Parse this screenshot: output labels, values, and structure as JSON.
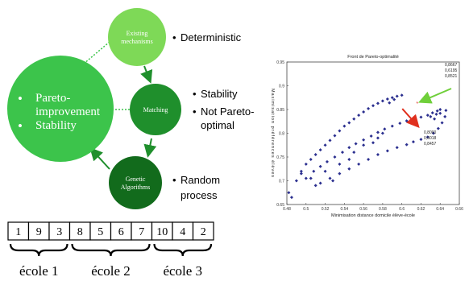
{
  "diagram": {
    "nodes": {
      "existing": {
        "label_lines": [
          "Existing",
          "mechanisms"
        ],
        "color": "#7ed957"
      },
      "matching": {
        "label": "Matching",
        "color": "#1f8f2c"
      },
      "genetic": {
        "label_lines": [
          "Genetic",
          "Algorithms"
        ],
        "color": "#126b1c"
      },
      "pareto": {
        "items": [
          "Pareto-",
          "improvement",
          "Stability"
        ],
        "color": "#3cc44b"
      }
    },
    "annotations": {
      "existing": [
        "Deterministic"
      ],
      "matching": [
        "Stability",
        "Not Pareto-",
        "optimal"
      ],
      "genetic": [
        "Random",
        "process"
      ]
    },
    "bullet": "•"
  },
  "array": {
    "cells": [
      "1",
      "9",
      "3",
      "8",
      "5",
      "6",
      "7",
      "10",
      "4",
      "2"
    ],
    "groups": [
      {
        "label": "école 1",
        "span": [
          0,
          3
        ]
      },
      {
        "label": "école 2",
        "span": [
          3,
          7
        ]
      },
      {
        "label": "école 3",
        "span": [
          7,
          10
        ]
      }
    ]
  },
  "chart_data": {
    "type": "scatter",
    "title": "Front de Pareto-optimalité",
    "xlabel": "Minimisation distance domicile élève-école",
    "ylabel": "Maximisation préférences élèves",
    "xlim": [
      0.48,
      0.66
    ],
    "ylim": [
      0.65,
      0.95
    ],
    "xticks": [
      "0.48",
      "0.5",
      "0.52",
      "0.54",
      "0.56",
      "0.58",
      "0.6",
      "0.62",
      "0.64",
      "0.66"
    ],
    "yticks": [
      "0.65",
      "0.7",
      "0.75",
      "0.8",
      "0.85",
      "0.9",
      "0.95"
    ],
    "series": [
      {
        "color": "#2b2f8f",
        "points": [
          [
            0.482,
            0.675
          ],
          [
            0.49,
            0.7
          ],
          [
            0.495,
            0.715
          ],
          [
            0.5,
            0.735
          ],
          [
            0.505,
            0.745
          ],
          [
            0.51,
            0.755
          ],
          [
            0.515,
            0.765
          ],
          [
            0.52,
            0.775
          ],
          [
            0.525,
            0.785
          ],
          [
            0.53,
            0.795
          ],
          [
            0.535,
            0.805
          ],
          [
            0.54,
            0.815
          ],
          [
            0.545,
            0.822
          ],
          [
            0.55,
            0.83
          ],
          [
            0.555,
            0.838
          ],
          [
            0.56,
            0.845
          ],
          [
            0.565,
            0.852
          ],
          [
            0.57,
            0.858
          ],
          [
            0.575,
            0.863
          ],
          [
            0.58,
            0.868
          ],
          [
            0.585,
            0.872
          ],
          [
            0.59,
            0.875
          ],
          [
            0.595,
            0.878
          ],
          [
            0.6,
            0.88
          ],
          [
            0.592,
            0.871
          ],
          [
            0.587,
            0.864
          ]
        ]
      },
      {
        "color": "#2b2f8f",
        "points": [
          [
            0.5,
            0.705
          ],
          [
            0.508,
            0.72
          ],
          [
            0.515,
            0.73
          ],
          [
            0.522,
            0.74
          ],
          [
            0.53,
            0.75
          ],
          [
            0.538,
            0.76
          ],
          [
            0.545,
            0.77
          ],
          [
            0.552,
            0.778
          ],
          [
            0.56,
            0.786
          ],
          [
            0.568,
            0.794
          ],
          [
            0.575,
            0.802
          ],
          [
            0.582,
            0.809
          ],
          [
            0.59,
            0.815
          ],
          [
            0.598,
            0.821
          ],
          [
            0.605,
            0.826
          ],
          [
            0.612,
            0.83
          ],
          [
            0.62,
            0.834
          ],
          [
            0.627,
            0.838
          ],
          [
            0.632,
            0.843
          ],
          [
            0.637,
            0.847
          ],
          [
            0.64,
            0.85
          ],
          [
            0.636,
            0.84
          ],
          [
            0.63,
            0.835
          ]
        ]
      },
      {
        "color": "#2b2f8f",
        "points": [
          [
            0.515,
            0.695
          ],
          [
            0.525,
            0.705
          ],
          [
            0.535,
            0.715
          ],
          [
            0.545,
            0.725
          ],
          [
            0.555,
            0.735
          ],
          [
            0.565,
            0.745
          ],
          [
            0.575,
            0.755
          ],
          [
            0.585,
            0.763
          ],
          [
            0.595,
            0.77
          ],
          [
            0.605,
            0.776
          ],
          [
            0.612,
            0.782
          ],
          [
            0.62,
            0.787
          ],
          [
            0.627,
            0.792
          ],
          [
            0.633,
            0.8
          ],
          [
            0.638,
            0.81
          ],
          [
            0.642,
            0.822
          ],
          [
            0.645,
            0.835
          ],
          [
            0.646,
            0.848
          ],
          [
            0.64,
            0.842
          ],
          [
            0.634,
            0.83
          ]
        ]
      },
      {
        "color": "#2b2f8f",
        "points": [
          [
            0.485,
            0.665
          ],
          [
            0.495,
            0.72
          ],
          [
            0.505,
            0.705
          ],
          [
            0.51,
            0.69
          ],
          [
            0.52,
            0.72
          ],
          [
            0.528,
            0.7
          ],
          [
            0.535,
            0.735
          ],
          [
            0.545,
            0.745
          ],
          [
            0.55,
            0.76
          ],
          [
            0.56,
            0.775
          ],
          [
            0.57,
            0.78
          ],
          [
            0.575,
            0.79
          ],
          [
            0.58,
            0.8
          ]
        ]
      }
    ],
    "highlights": [
      {
        "point": [
          0.616,
          0.862
        ],
        "labels": [
          "0,8667",
          "0,6195",
          "0,8521"
        ],
        "arrow_color": "#6fcf3a"
      },
      {
        "point": [
          0.603,
          0.838
        ],
        "labels": [
          "0,8000",
          "0,6018",
          "0,8457"
        ],
        "arrow_color": "#e0301e"
      }
    ]
  }
}
